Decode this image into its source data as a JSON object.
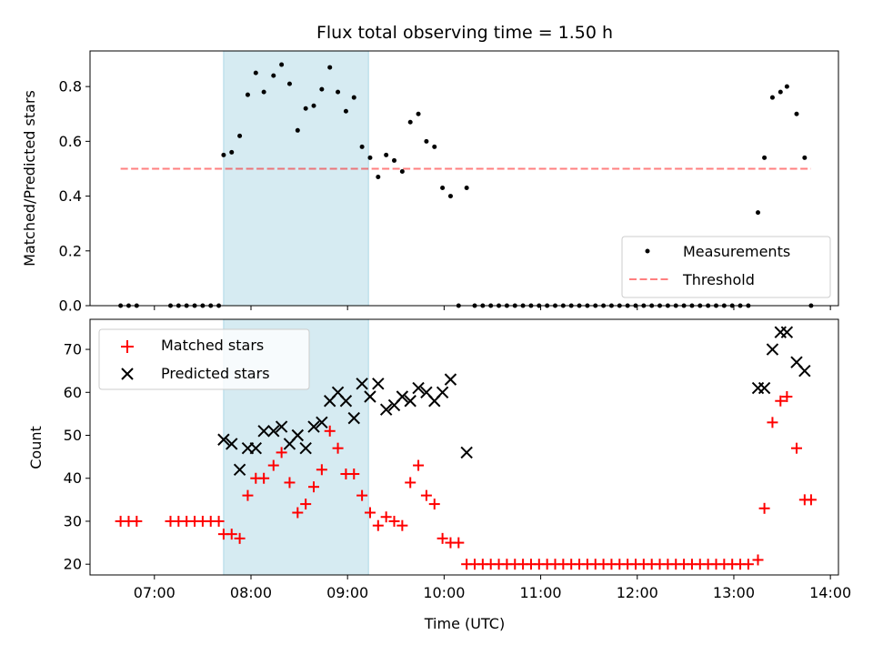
{
  "title": "Flux total observing time = 1.50 h",
  "colors": {
    "highlight": "#add8e6",
    "threshold": "#ff0000",
    "matched": "#ff0000",
    "predicted": "#000000",
    "measurements": "#000000"
  },
  "chart_data": [
    {
      "type": "scatter",
      "ylabel": "Matched/Predicted stars",
      "ylim": [
        0,
        0.93
      ],
      "yticks": [
        0.0,
        0.2,
        0.4,
        0.6,
        0.8
      ],
      "ytick_labels": [
        "0.0",
        "0.2",
        "0.4",
        "0.6",
        "0.8"
      ],
      "grid": false,
      "legend_position": "lower-right",
      "highlight_span": [
        "07:43",
        "09:13"
      ],
      "series": [
        {
          "name": "Measurements",
          "marker": "dot",
          "points": [
            [
              "06:39",
              0
            ],
            [
              "06:44",
              0
            ],
            [
              "06:49",
              0
            ],
            [
              "07:10",
              0
            ],
            [
              "07:15",
              0
            ],
            [
              "07:20",
              0
            ],
            [
              "07:25",
              0
            ],
            [
              "07:30",
              0
            ],
            [
              "07:35",
              0
            ],
            [
              "07:40",
              0
            ],
            [
              "07:43",
              0.55
            ],
            [
              "07:48",
              0.56
            ],
            [
              "07:53",
              0.62
            ],
            [
              "07:58",
              0.77
            ],
            [
              "08:03",
              0.85
            ],
            [
              "08:08",
              0.78
            ],
            [
              "08:14",
              0.84
            ],
            [
              "08:19",
              0.88
            ],
            [
              "08:24",
              0.81
            ],
            [
              "08:29",
              0.64
            ],
            [
              "08:34",
              0.72
            ],
            [
              "08:39",
              0.73
            ],
            [
              "08:44",
              0.79
            ],
            [
              "08:49",
              0.87
            ],
            [
              "08:54",
              0.78
            ],
            [
              "08:59",
              0.71
            ],
            [
              "09:04",
              0.76
            ],
            [
              "09:09",
              0.58
            ],
            [
              "09:14",
              0.54
            ],
            [
              "09:19",
              0.47
            ],
            [
              "09:24",
              0.55
            ],
            [
              "09:29",
              0.53
            ],
            [
              "09:34",
              0.49
            ],
            [
              "09:39",
              0.67
            ],
            [
              "09:44",
              0.7
            ],
            [
              "09:49",
              0.6
            ],
            [
              "09:54",
              0.58
            ],
            [
              "09:59",
              0.43
            ],
            [
              "10:04",
              0.4
            ],
            [
              "10:09",
              0
            ],
            [
              "10:14",
              0.43
            ],
            [
              "10:19",
              0
            ],
            [
              "10:24",
              0
            ],
            [
              "10:29",
              0
            ],
            [
              "10:34",
              0
            ],
            [
              "10:39",
              0
            ],
            [
              "10:44",
              0
            ],
            [
              "10:49",
              0
            ],
            [
              "10:54",
              0
            ],
            [
              "10:59",
              0
            ],
            [
              "11:04",
              0
            ],
            [
              "11:09",
              0
            ],
            [
              "11:14",
              0
            ],
            [
              "11:19",
              0
            ],
            [
              "11:24",
              0
            ],
            [
              "11:29",
              0
            ],
            [
              "11:34",
              0
            ],
            [
              "11:39",
              0
            ],
            [
              "11:44",
              0
            ],
            [
              "11:49",
              0
            ],
            [
              "11:54",
              0
            ],
            [
              "11:59",
              0
            ],
            [
              "12:04",
              0
            ],
            [
              "12:09",
              0
            ],
            [
              "12:14",
              0
            ],
            [
              "12:19",
              0
            ],
            [
              "12:24",
              0
            ],
            [
              "12:29",
              0
            ],
            [
              "12:34",
              0
            ],
            [
              "12:39",
              0
            ],
            [
              "12:44",
              0
            ],
            [
              "12:49",
              0
            ],
            [
              "12:54",
              0
            ],
            [
              "12:59",
              0
            ],
            [
              "13:04",
              0
            ],
            [
              "13:09",
              0
            ],
            [
              "13:15",
              0.34
            ],
            [
              "13:19",
              0.54
            ],
            [
              "13:24",
              0.76
            ],
            [
              "13:29",
              0.78
            ],
            [
              "13:33",
              0.8
            ],
            [
              "13:39",
              0.7
            ],
            [
              "13:44",
              0.54
            ],
            [
              "13:48",
              0
            ]
          ]
        },
        {
          "name": "Threshold",
          "style": "dashed",
          "y": 0.5,
          "x_range": [
            "06:39",
            "13:48"
          ]
        }
      ]
    },
    {
      "type": "scatter",
      "xlabel": "Time (UTC)",
      "ylabel": "Count",
      "ylim": [
        17.5,
        77
      ],
      "yticks": [
        20,
        30,
        40,
        50,
        60,
        70
      ],
      "ytick_labels": [
        "20",
        "30",
        "40",
        "50",
        "60",
        "70"
      ],
      "xlim": [
        "06:20",
        "14:05"
      ],
      "xticks": [
        "07:00",
        "08:00",
        "09:00",
        "10:00",
        "11:00",
        "12:00",
        "13:00",
        "14:00"
      ],
      "xtick_labels": [
        "07:00",
        "08:00",
        "09:00",
        "10:00",
        "11:00",
        "12:00",
        "13:00",
        "14:00"
      ],
      "grid": false,
      "legend_position": "upper-left",
      "highlight_span": [
        "07:43",
        "09:13"
      ],
      "series": [
        {
          "name": "Matched stars",
          "marker": "plus",
          "points": [
            [
              "06:39",
              30
            ],
            [
              "06:44",
              30
            ],
            [
              "06:49",
              30
            ],
            [
              "07:10",
              30
            ],
            [
              "07:15",
              30
            ],
            [
              "07:20",
              30
            ],
            [
              "07:25",
              30
            ],
            [
              "07:30",
              30
            ],
            [
              "07:35",
              30
            ],
            [
              "07:40",
              30
            ],
            [
              "07:43",
              27
            ],
            [
              "07:48",
              27
            ],
            [
              "07:53",
              26
            ],
            [
              "07:58",
              36
            ],
            [
              "08:03",
              40
            ],
            [
              "08:08",
              40
            ],
            [
              "08:14",
              43
            ],
            [
              "08:19",
              46
            ],
            [
              "08:24",
              39
            ],
            [
              "08:29",
              32
            ],
            [
              "08:34",
              34
            ],
            [
              "08:39",
              38
            ],
            [
              "08:44",
              42
            ],
            [
              "08:49",
              51
            ],
            [
              "08:54",
              47
            ],
            [
              "08:59",
              41
            ],
            [
              "09:04",
              41
            ],
            [
              "09:09",
              36
            ],
            [
              "09:14",
              32
            ],
            [
              "09:19",
              29
            ],
            [
              "09:24",
              31
            ],
            [
              "09:29",
              30
            ],
            [
              "09:34",
              29
            ],
            [
              "09:39",
              39
            ],
            [
              "09:44",
              43
            ],
            [
              "09:49",
              36
            ],
            [
              "09:54",
              34
            ],
            [
              "09:59",
              26
            ],
            [
              "10:04",
              25
            ],
            [
              "10:09",
              25
            ],
            [
              "10:14",
              20
            ],
            [
              "10:19",
              20
            ],
            [
              "10:24",
              20
            ],
            [
              "10:29",
              20
            ],
            [
              "10:34",
              20
            ],
            [
              "10:39",
              20
            ],
            [
              "10:44",
              20
            ],
            [
              "10:49",
              20
            ],
            [
              "10:54",
              20
            ],
            [
              "10:59",
              20
            ],
            [
              "11:04",
              20
            ],
            [
              "11:09",
              20
            ],
            [
              "11:14",
              20
            ],
            [
              "11:19",
              20
            ],
            [
              "11:24",
              20
            ],
            [
              "11:29",
              20
            ],
            [
              "11:34",
              20
            ],
            [
              "11:39",
              20
            ],
            [
              "11:44",
              20
            ],
            [
              "11:49",
              20
            ],
            [
              "11:54",
              20
            ],
            [
              "11:59",
              20
            ],
            [
              "12:04",
              20
            ],
            [
              "12:09",
              20
            ],
            [
              "12:14",
              20
            ],
            [
              "12:19",
              20
            ],
            [
              "12:24",
              20
            ],
            [
              "12:29",
              20
            ],
            [
              "12:34",
              20
            ],
            [
              "12:39",
              20
            ],
            [
              "12:44",
              20
            ],
            [
              "12:49",
              20
            ],
            [
              "12:54",
              20
            ],
            [
              "12:59",
              20
            ],
            [
              "13:04",
              20
            ],
            [
              "13:09",
              20
            ],
            [
              "13:15",
              21
            ],
            [
              "13:19",
              33
            ],
            [
              "13:24",
              53
            ],
            [
              "13:29",
              58
            ],
            [
              "13:33",
              59
            ],
            [
              "13:39",
              47
            ],
            [
              "13:44",
              35
            ],
            [
              "13:48",
              35
            ]
          ]
        },
        {
          "name": "Predicted stars",
          "marker": "x",
          "points": [
            [
              "07:43",
              49
            ],
            [
              "07:48",
              48
            ],
            [
              "07:53",
              42
            ],
            [
              "07:58",
              47
            ],
            [
              "08:03",
              47
            ],
            [
              "08:08",
              51
            ],
            [
              "08:14",
              51
            ],
            [
              "08:19",
              52
            ],
            [
              "08:24",
              48
            ],
            [
              "08:29",
              50
            ],
            [
              "08:34",
              47
            ],
            [
              "08:39",
              52
            ],
            [
              "08:44",
              53
            ],
            [
              "08:49",
              58
            ],
            [
              "08:54",
              60
            ],
            [
              "08:59",
              58
            ],
            [
              "09:04",
              54
            ],
            [
              "09:09",
              62
            ],
            [
              "09:14",
              59
            ],
            [
              "09:19",
              62
            ],
            [
              "09:24",
              56
            ],
            [
              "09:29",
              57
            ],
            [
              "09:34",
              59
            ],
            [
              "09:39",
              58
            ],
            [
              "09:44",
              61
            ],
            [
              "09:49",
              60
            ],
            [
              "09:54",
              58
            ],
            [
              "09:59",
              60
            ],
            [
              "10:04",
              63
            ],
            [
              "10:14",
              46
            ],
            [
              "13:15",
              61
            ],
            [
              "13:19",
              61
            ],
            [
              "13:24",
              70
            ],
            [
              "13:29",
              74
            ],
            [
              "13:33",
              74
            ],
            [
              "13:39",
              67
            ],
            [
              "13:44",
              65
            ]
          ]
        }
      ]
    }
  ]
}
